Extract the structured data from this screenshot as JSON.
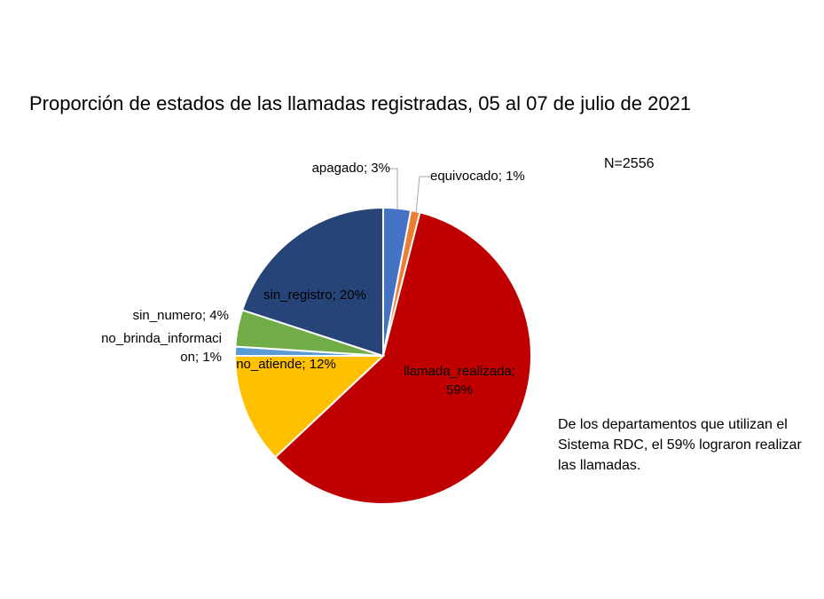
{
  "chart_data": {
    "type": "pie",
    "title": "Proporción de estados de las llamadas registradas, 05 al 07 de julio de 2021",
    "annotations": [
      "N=2556",
      "De los departamentos que utilizan el Sistema RDC, el 59% lograron realizar las llamadas."
    ],
    "values": [
      3,
      1,
      59,
      12,
      1,
      4,
      20
    ],
    "value_labels": [
      "apagado; 3%",
      "equivocado; 1%",
      "llamada_realizada; 59%",
      "no_atiende; 12%",
      "no_brinda_informacion; 1%",
      "sin_numero; 4%",
      "sin_registro; 20%"
    ],
    "colors": [
      "#4472c4",
      "#ed7d31",
      "#c00000",
      "#ffc000",
      "#5b9bd5",
      "#70ad47",
      "#264478"
    ]
  }
}
